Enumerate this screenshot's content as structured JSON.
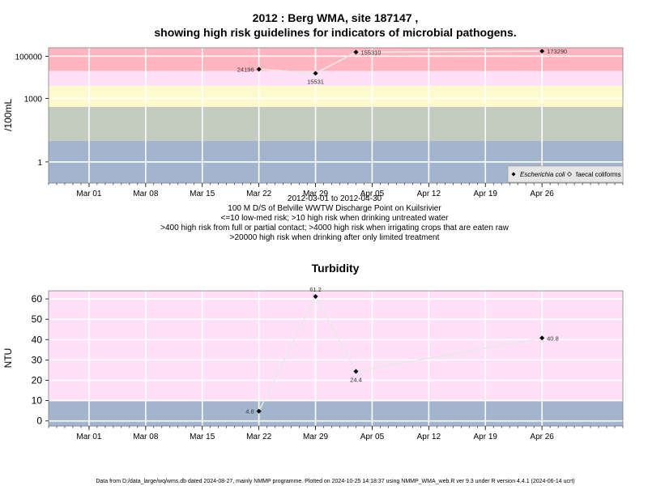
{
  "chart_data": [
    {
      "type": "line",
      "title": "2012 : Berg WMA, site 187147 ,",
      "subtitle": "showing high risk guidelines for indicators of microbial pathogens.",
      "ylabel": "/100mL",
      "yscale": "log",
      "ylim": [
        0.1,
        250000
      ],
      "x_tick_labels": [
        "Mar 01",
        "Mar 08",
        "Mar 15",
        "Mar 22",
        "Mar 29",
        "Apr 05",
        "Apr 12",
        "Apr 19",
        "Apr 26"
      ],
      "y_tick_labels": [
        "1",
        "1000",
        "100000"
      ],
      "y_tick_values": [
        1,
        1000,
        100000
      ],
      "xlabel_lines": [
        "2012-03-01 to 2012-04-30",
        "100 M D/S of Belville WWTW Discharge Point on Kuilsrivier",
        "<=10 low-med risk; >10 high risk when drinking untreated water",
        ">400 high risk from full or partial contact; >4000 high risk when irrigating crops that are eaten raw",
        ">20000 high risk when drinking after only limited treatment"
      ],
      "bands": [
        {
          "from": 0.1,
          "to": 10,
          "color": "#a3b5cc"
        },
        {
          "from": 10,
          "to": 400,
          "color": "#c4cbbf"
        },
        {
          "from": 400,
          "to": 4000,
          "color": "#fffacd"
        },
        {
          "from": 4000,
          "to": 20000,
          "color": "#ffe0f8"
        },
        {
          "from": 20000,
          "to": 250000,
          "color": "#ffb6c1"
        }
      ],
      "legend": {
        "position": "bottom-right",
        "entries": [
          {
            "label": "Escherichia coli",
            "marker": "filled-diamond"
          },
          {
            "label": "faecal coliforms",
            "marker": "open-diamond"
          }
        ]
      },
      "series": [
        {
          "name": "Escherichia coli",
          "x": [
            "2012-03-22",
            "2012-03-29",
            "2012-04-03",
            "2012-04-26"
          ],
          "y": [
            24196,
            15531,
            155310,
            173290
          ],
          "labels": [
            "24196",
            "15531",
            "155310",
            "173290"
          ]
        }
      ]
    },
    {
      "type": "line",
      "title": "Turbidity",
      "ylabel": "NTU",
      "ylim": [
        -2.5,
        64
      ],
      "x_tick_labels": [
        "Mar 01",
        "Mar 08",
        "Mar 15",
        "Mar 22",
        "Mar 29",
        "Apr 05",
        "Apr 12",
        "Apr 19",
        "Apr 26"
      ],
      "y_tick_labels": [
        "0",
        "10",
        "20",
        "30",
        "40",
        "50",
        "60"
      ],
      "y_tick_values": [
        0,
        10,
        20,
        30,
        40,
        50,
        60
      ],
      "bands": [
        {
          "from": -2.5,
          "to": 10,
          "color": "#a3b5cc"
        },
        {
          "from": 10,
          "to": 64,
          "color": "#ffe0f8"
        }
      ],
      "series": [
        {
          "x": [
            "2012-03-22",
            "2012-03-29",
            "2012-04-03",
            "2012-04-26"
          ],
          "y": [
            4.8,
            61.2,
            24.4,
            40.8
          ],
          "labels": [
            "4.8",
            "61.2",
            "24.4",
            "40.8"
          ]
        }
      ]
    }
  ],
  "footer": "Data from D:/data_large/wq/wms.db dated 2024-08-27, mainly NMMP programme. Plotted on 2024-10-25 14:18:37 using NMMP_WMA_web.R ver 9.3 under R version 4.4.1 (2024-06-14 ucrt)",
  "colors": {
    "gridline": "#ffffff",
    "series_line": "#e8e8e8",
    "marker": "#000000",
    "axis_frame": "#808080",
    "legend_bg": "#e6e6e6"
  }
}
